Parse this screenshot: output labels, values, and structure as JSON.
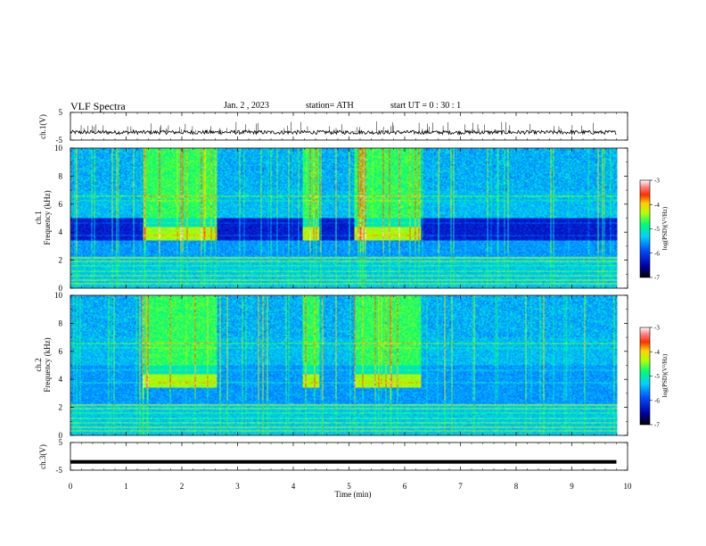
{
  "header": {
    "title": "VLF  Spectra",
    "date": "Jan. 2  , 2023",
    "station": "station= ATH",
    "start_ut": "start  UT  =   0  : 30 : 1"
  },
  "colors": {
    "background": "#ffffff",
    "axis": "#000000",
    "colormap": [
      "#00004d",
      "#0000ff",
      "#0066ff",
      "#00d0ff",
      "#00ff80",
      "#a0ff00",
      "#ffff00",
      "#ff8000",
      "#ff0000",
      "#ffffff"
    ]
  },
  "chart_data": [
    {
      "type": "line",
      "id": "ch1-waveform",
      "ylabel": "ch.1(V)",
      "yticks": [
        "5",
        "-5"
      ],
      "ylim": [
        -5,
        5
      ],
      "x_range_min": [
        0,
        9.8
      ],
      "baseline_v": -2.2
    },
    {
      "type": "heatmap",
      "id": "ch1-spectrogram",
      "ylabel": "ch.1\nFrequency (kHz)",
      "yticks": [
        "0",
        "2",
        "4",
        "6",
        "8",
        "10"
      ],
      "ylim": [
        0,
        10
      ],
      "x_range_min": [
        0,
        9.8
      ],
      "colorbar": {
        "label": "log(PSD)(V²/Hz)",
        "ticks": [
          "-3",
          "-4",
          "-5",
          "-6",
          "-7"
        ],
        "range": [
          -7,
          -3
        ]
      },
      "bursts_min": [
        [
          1.28,
          2.62
        ],
        [
          4.15,
          4.46
        ],
        [
          5.07,
          6.27
        ]
      ],
      "band_kHz": [
        3.5,
        4.5
      ]
    },
    {
      "type": "heatmap",
      "id": "ch2-spectrogram",
      "ylabel": "ch.2\nFrequency (kHz)",
      "yticks": [
        "0",
        "2",
        "4",
        "6",
        "8",
        "10"
      ],
      "ylim": [
        0,
        10
      ],
      "x_range_min": [
        0,
        9.8
      ],
      "colorbar": {
        "label": "log(PSD)(V²/Hz)",
        "ticks": [
          "-3",
          "-4",
          "-5",
          "-6",
          "-7"
        ],
        "range": [
          -7,
          -3
        ]
      },
      "bursts_min": [
        [
          1.28,
          2.62
        ],
        [
          4.15,
          4.46
        ],
        [
          5.07,
          6.27
        ]
      ],
      "band_kHz": [
        3.5,
        4.5
      ]
    },
    {
      "type": "line",
      "id": "ch3-waveform",
      "ylabel": "ch.3(V)",
      "yticks": [
        "5",
        "-5"
      ],
      "ylim": [
        -5,
        5
      ],
      "x_range_min": [
        0,
        9.8
      ],
      "baseline_v": -2.0,
      "xlabel": "Time  (min)",
      "xticks": [
        "0",
        "1",
        "2",
        "3",
        "4",
        "5",
        "6",
        "7",
        "8",
        "9",
        "10"
      ],
      "xlim": [
        0,
        10
      ]
    }
  ]
}
